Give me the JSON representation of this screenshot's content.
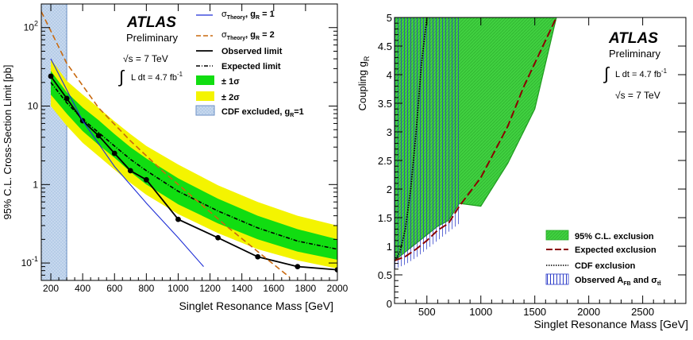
{
  "chart_data": [
    {
      "type": "line",
      "ylabel": "95% C.L. Cross-Section Limit [pb]",
      "xlabel": "Singlet Resonance Mass [GeV]",
      "xlim": [
        140,
        2000
      ],
      "ylim": [
        0.06,
        200
      ],
      "yscale": "log",
      "grid": false,
      "xticks": [
        200,
        400,
        600,
        800,
        1000,
        1200,
        1400,
        1600,
        1800,
        2000
      ],
      "yticks": [
        {
          "v": 0.1,
          "base": "10",
          "exp": "-1"
        },
        {
          "v": 1,
          "base": "1",
          "exp": ""
        },
        {
          "v": 10,
          "base": "10",
          "exp": ""
        },
        {
          "v": 100,
          "base": "10",
          "exp": "2"
        }
      ],
      "atlas": {
        "title": "ATLAS",
        "sub": "Preliminary",
        "sqrts": "√s = 7 TeV",
        "lumi_int": "∫",
        "lumi": "L dt = 4.7 fb",
        "lumi_exp": "-1"
      },
      "legend_position": "top-right",
      "legend": [
        {
          "key": "theory1",
          "label": "σ",
          "sub": "Theory",
          "rest": ", g",
          "rsub": "R",
          "tail": " = 1"
        },
        {
          "key": "theory2",
          "label": "σ",
          "sub": "Theory",
          "rest": ", g",
          "rsub": "R",
          "tail": " = 2"
        },
        {
          "key": "observed",
          "label": "Observed limit"
        },
        {
          "key": "expected",
          "label": "Expected limit"
        },
        {
          "key": "band1",
          "label": "± 1σ"
        },
        {
          "key": "band2",
          "label": "± 2σ"
        },
        {
          "key": "cdf",
          "label": "CDF excluded, g",
          "rsub": "R",
          "tail": "=1"
        }
      ],
      "cdf_region": [
        140,
        300
      ],
      "series": [
        {
          "key": "observed",
          "color": "#000000",
          "x": [
            200,
            300,
            400,
            500,
            600,
            700,
            800,
            1000,
            1250,
            1500,
            1750,
            2000
          ],
          "y": [
            24,
            12.5,
            6.5,
            4.2,
            2.5,
            1.5,
            1.15,
            0.36,
            0.21,
            0.12,
            0.09,
            0.082
          ]
        },
        {
          "key": "expected",
          "color": "#000000",
          "x": [
            200,
            300,
            400,
            500,
            600,
            700,
            800,
            1000,
            1250,
            1500,
            1750,
            2000
          ],
          "y": [
            20,
            11,
            6.8,
            4.6,
            3.1,
            2.1,
            1.5,
            0.82,
            0.46,
            0.28,
            0.19,
            0.15
          ]
        },
        {
          "key": "theory1",
          "color": "#1f2fd6",
          "x": [
            200,
            400,
            600,
            800,
            1000,
            1160
          ],
          "y": [
            40,
            6.5,
            1.7,
            0.58,
            0.21,
            0.09
          ]
        },
        {
          "key": "theory2",
          "color": "#c8690f",
          "x": [
            140,
            300,
            500,
            700,
            900,
            1100,
            1300,
            1500,
            1700
          ],
          "y": [
            160,
            35,
            9.5,
            3.6,
            1.5,
            0.67,
            0.3,
            0.14,
            0.066
          ]
        }
      ],
      "band_1sigma": {
        "color": "#11dd11",
        "x": [
          200,
          300,
          400,
          500,
          600,
          700,
          800,
          1000,
          1250,
          1500,
          1750,
          2000
        ],
        "lo": [
          14,
          8,
          4.8,
          3.2,
          2.2,
          1.45,
          1.0,
          0.56,
          0.32,
          0.2,
          0.14,
          0.11
        ],
        "hi": [
          28,
          15,
          9.6,
          6.6,
          4.4,
          3.0,
          2.15,
          1.2,
          0.66,
          0.4,
          0.27,
          0.2
        ]
      },
      "band_2sigma": {
        "color": "#f4f400",
        "x": [
          200,
          300,
          400,
          500,
          600,
          700,
          800,
          1000,
          1250,
          1500,
          1750,
          2000
        ],
        "lo": [
          10,
          5.6,
          3.4,
          2.3,
          1.55,
          1.05,
          0.74,
          0.42,
          0.24,
          0.15,
          0.108,
          0.085
        ],
        "hi": [
          40,
          21,
          14,
          9.5,
          6.4,
          4.4,
          3.1,
          1.8,
          0.98,
          0.6,
          0.4,
          0.3
        ]
      }
    },
    {
      "type": "area",
      "ylabel": "Coupling g",
      "ylabel_sub": "R",
      "xlabel": "Singlet Resonance Mass [GeV]",
      "xlim": [
        200,
        2900
      ],
      "ylim": [
        0,
        5
      ],
      "grid": false,
      "xticks": [
        500,
        1000,
        1500,
        2000,
        2500
      ],
      "yticks": [
        0,
        0.5,
        1,
        1.5,
        2,
        2.5,
        3,
        3.5,
        4,
        4.5,
        5
      ],
      "atlas": {
        "title": "ATLAS",
        "sub": "Preliminary",
        "lumi_int": "∫",
        "lumi": "L dt = 4.7 fb",
        "lumi_exp": "-1",
        "sqrts": "√s = 7 TeV"
      },
      "legend_position": "bottom-right",
      "legend": [
        {
          "key": "excl",
          "label": "95% C.L. exclusion"
        },
        {
          "key": "expected",
          "label": "Expected exclusion"
        },
        {
          "key": "cdf",
          "label": "CDF exclusion"
        },
        {
          "key": "afb",
          "label": "Observed A",
          "sub": "FB",
          "rest": " and σ",
          "rsub": "tt̄"
        }
      ],
      "exclusion_region": {
        "color": "#40d040",
        "x": [
          200,
          300,
          400,
          500,
          600,
          700,
          800,
          1000,
          1250,
          1500,
          1700
        ],
        "y": [
          0.75,
          0.9,
          1.05,
          1.2,
          1.35,
          1.45,
          1.75,
          1.7,
          2.45,
          3.4,
          5.0
        ]
      },
      "afb_region": {
        "color": "#2a3ac8",
        "x": [
          200,
          300,
          400,
          500,
          600,
          700,
          800
        ],
        "ylow": [
          0.6,
          0.68,
          0.8,
          0.95,
          1.1,
          1.25,
          1.4
        ],
        "ytop": [
          5,
          5,
          5,
          5,
          5,
          5,
          5
        ]
      },
      "series": [
        {
          "key": "expected",
          "color": "#8b0000",
          "x": [
            200,
            300,
            400,
            500,
            600,
            700,
            800,
            1000,
            1250,
            1400,
            1500,
            1600,
            1700
          ],
          "y": [
            0.75,
            0.82,
            0.95,
            1.1,
            1.28,
            1.4,
            1.7,
            2.2,
            3.1,
            3.8,
            4.2,
            4.6,
            5.0
          ]
        },
        {
          "key": "cdf",
          "color": "#000000",
          "x": [
            200,
            250,
            300,
            350,
            400,
            450,
            500
          ],
          "y": [
            0.75,
            0.9,
            1.3,
            2.0,
            3.0,
            4.2,
            5.0
          ]
        }
      ]
    }
  ]
}
